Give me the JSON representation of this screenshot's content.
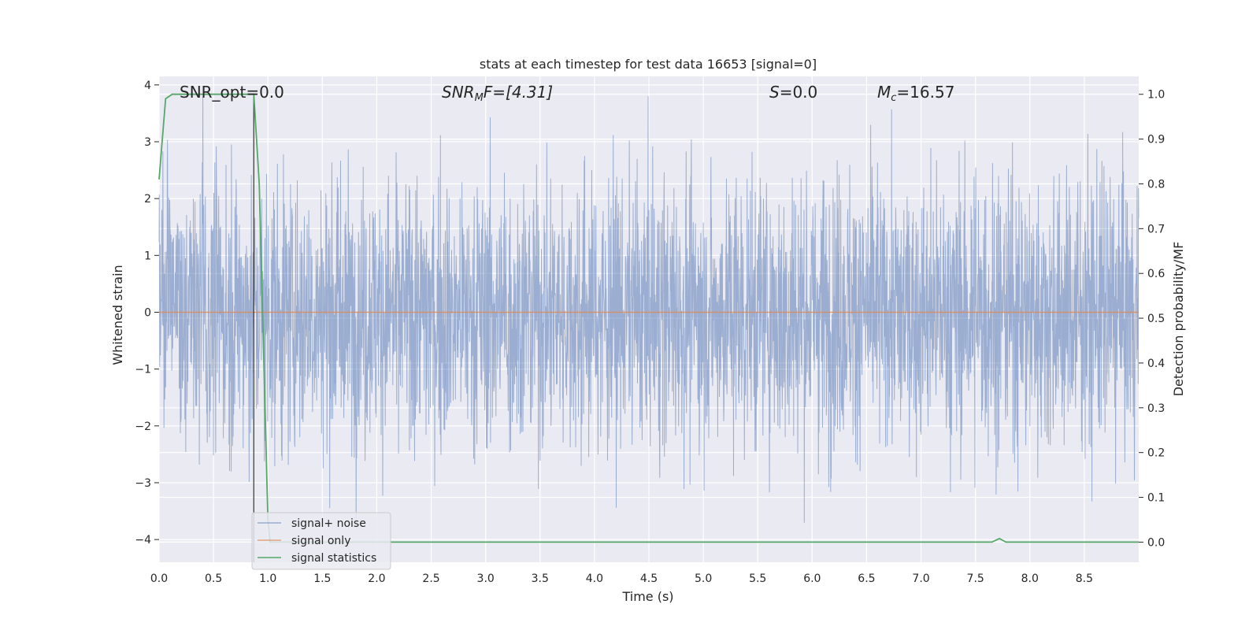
{
  "chart_data": {
    "type": "line",
    "title": "stats at each timestep for test data 16653 [signal=0]",
    "xlabel": "Time (s)",
    "ylabel": "Whitened strain",
    "y2label": "Detection probability/MF",
    "xlim": [
      0.0,
      9.0
    ],
    "ylim": [
      -4.4,
      4.15
    ],
    "y2lim": [
      -0.045,
      1.04
    ],
    "xticks": [
      "0.0",
      "0.5",
      "1.0",
      "1.5",
      "2.0",
      "2.5",
      "3.0",
      "3.5",
      "4.0",
      "4.5",
      "5.0",
      "5.5",
      "6.0",
      "6.5",
      "7.0",
      "7.5",
      "8.0",
      "8.5"
    ],
    "yticks": [
      "4",
      "3",
      "2",
      "1",
      "0",
      "−1",
      "−2",
      "−3",
      "−4"
    ],
    "y2ticks": [
      "1.0",
      "0.9",
      "0.8",
      "0.7",
      "0.6",
      "0.5",
      "0.4",
      "0.3",
      "0.2",
      "0.1",
      "0.0"
    ],
    "grid": true,
    "legend_position": "lower-left",
    "annotations": {
      "snr_opt": "SNR_opt=0.0",
      "snr_mf_prefix": "SNR",
      "snr_mf_sub": "M",
      "snr_mf_suffix": "F=[4.31]",
      "s_prefix": "S",
      "s_suffix": "=0.0",
      "mc_prefix": "M",
      "mc_sub": "c",
      "mc_suffix": "=16.57"
    },
    "series": [
      {
        "name": "signal+ noise",
        "color": "#4c72b0",
        "axis": "left",
        "description_values": {
          "amplitude_range": [
            -4.0,
            3.8
          ],
          "typical_abs": 1.4,
          "duration": 9.0
        }
      },
      {
        "name": "signal only",
        "color": "#dd8452",
        "axis": "left",
        "x": [
          0.0,
          9.0
        ],
        "y": [
          0.0,
          0.0
        ]
      },
      {
        "name": "signal statistics",
        "color": "#55a868",
        "axis": "right",
        "x": [
          0.0,
          0.06,
          0.12,
          0.5,
          0.87,
          0.92,
          1.0,
          1.02,
          7.65,
          7.72,
          7.78,
          9.0
        ],
        "y": [
          0.81,
          0.99,
          1.0,
          1.0,
          1.0,
          0.8,
          0.05,
          0.0,
          0.0,
          0.008,
          0.0,
          0.0
        ]
      }
    ],
    "vline_x": 0.87
  }
}
